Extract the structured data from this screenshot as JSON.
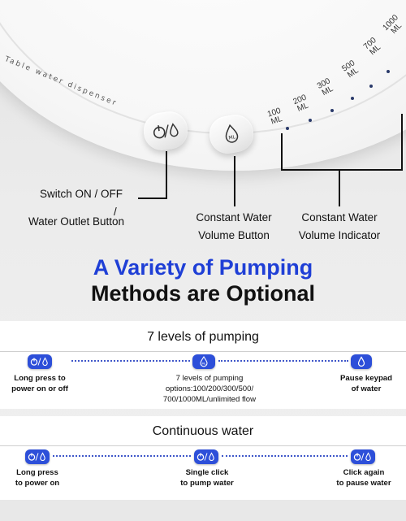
{
  "device": {
    "model_label": "Table water dispenser",
    "ml_marks": [
      {
        "n": "100",
        "u": "ML"
      },
      {
        "n": "200",
        "u": "ML"
      },
      {
        "n": "300",
        "u": "ML"
      },
      {
        "n": "500",
        "u": "ML"
      },
      {
        "n": "700",
        "u": "ML"
      },
      {
        "n": "1000",
        "u": "ML"
      }
    ]
  },
  "callouts": {
    "switch_line1": "Switch ON / OFF",
    "switch_line2": "/",
    "switch_line3": "Water Outlet Button",
    "constant_button_line1": "Constant Water",
    "constant_button_line2": "Volume Button",
    "indicator_line1": "Constant Water",
    "indicator_line2": "Volume Indicator"
  },
  "headline": {
    "line1": "A Variety of Pumping",
    "line2": "Methods are Optional"
  },
  "colors": {
    "accent": "#2d4fd9",
    "headline_blue": "#1f3fd6",
    "text": "#111111"
  },
  "pumping": {
    "title": "7 levels of pumping",
    "steps": [
      {
        "icon": "power-drop-icon",
        "caption_l1": "Long press to",
        "caption_l2": "power on or off",
        "caption_l3": ""
      },
      {
        "icon": "ml-drop-icon",
        "caption_l1": "7 levels of pumping",
        "caption_l2": "options:100/200/300/500/",
        "caption_l3": "700/1000ML/unlimited flow"
      },
      {
        "icon": "drop-icon",
        "caption_l1": "Pause keypad",
        "caption_l2": "of water",
        "caption_l3": ""
      }
    ]
  },
  "continuous": {
    "title": "Continuous water",
    "steps": [
      {
        "icon": "power-drop-icon",
        "caption_l1": "Long press",
        "caption_l2": "to power on"
      },
      {
        "icon": "power-drop-icon",
        "caption_l1": "Single click",
        "caption_l2": "to pump water"
      },
      {
        "icon": "power-drop-icon",
        "caption_l1": "Click again",
        "caption_l2": "to pause water"
      }
    ]
  }
}
